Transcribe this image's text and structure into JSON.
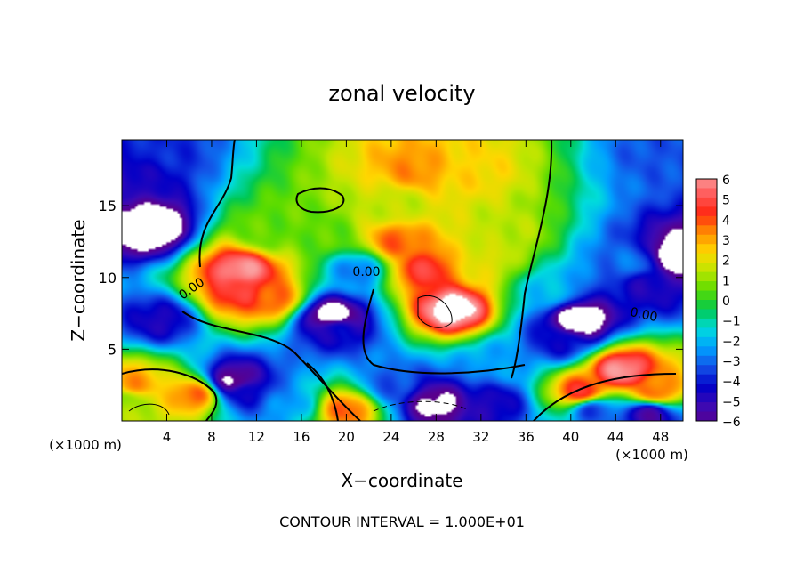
{
  "chart_data": {
    "type": "heatmap",
    "title": "zonal velocity",
    "xlabel": "X−coordinate",
    "ylabel": "Z−coordinate",
    "x_unit_label": "(×1000 m)",
    "y_unit_label": "(×1000 m)",
    "footer": "CONTOUR INTERVAL = 1.000E+01",
    "contour_labels": [
      "0.00",
      "0.00",
      "0.00"
    ],
    "x_ticks": [
      4,
      8,
      12,
      16,
      20,
      24,
      28,
      32,
      36,
      40,
      44,
      48
    ],
    "y_ticks": [
      5,
      10,
      15
    ],
    "xlim": [
      0,
      50
    ],
    "ylim": [
      0,
      19.6
    ],
    "colorbar": {
      "ticks": [
        6,
        5,
        4,
        3,
        2,
        1,
        0,
        -1,
        -2,
        -3,
        -4,
        -5,
        -6
      ],
      "tick_labels": [
        "6",
        "5",
        "4",
        "3",
        "2",
        "1",
        "0",
        "−1",
        "−2",
        "−3",
        "−4",
        "−5",
        "−6"
      ],
      "range": [
        -6,
        6
      ]
    },
    "features": [
      {
        "x": 2.5,
        "z": 13.5,
        "value": -8
      },
      {
        "x": 0.5,
        "z": 17,
        "value": -5
      },
      {
        "x": 3.5,
        "z": 7,
        "value": -5
      },
      {
        "x": 0.5,
        "z": 1.5,
        "value": 1
      },
      {
        "x": 1,
        "z": 2.5,
        "value": 3.5
      },
      {
        "x": 6.5,
        "z": 1.8,
        "value": 4
      },
      {
        "x": 10.8,
        "z": 10.5,
        "value": 6.5
      },
      {
        "x": 10.5,
        "z": 9,
        "value": 5
      },
      {
        "x": 13.5,
        "z": 8.5,
        "value": 4
      },
      {
        "x": 10,
        "z": 2.8,
        "value": -7
      },
      {
        "x": 11,
        "z": 2,
        "value": -4.5
      },
      {
        "x": 18.7,
        "z": 7.3,
        "value": -8
      },
      {
        "x": 19,
        "z": 6.5,
        "value": -4.5
      },
      {
        "x": 21,
        "z": 10.5,
        "value": -3
      },
      {
        "x": 29.5,
        "z": 7.8,
        "value": 7.5
      },
      {
        "x": 27,
        "z": 10.5,
        "value": 5
      },
      {
        "x": 24.5,
        "z": 12.5,
        "value": 4
      },
      {
        "x": 26,
        "z": 17.5,
        "value": 3.5
      },
      {
        "x": 31,
        "z": 17.5,
        "value": 2.5
      },
      {
        "x": 32,
        "z": 11,
        "value": 2
      },
      {
        "x": 34,
        "z": 13,
        "value": 1.5
      },
      {
        "x": 24.5,
        "z": 15,
        "value": 1.5
      },
      {
        "x": 18,
        "z": 13,
        "value": 0.5
      },
      {
        "x": 28,
        "z": 1.2,
        "value": -7
      },
      {
        "x": 24,
        "z": 2.5,
        "value": -3.5
      },
      {
        "x": 33,
        "z": 4,
        "value": -2.5
      },
      {
        "x": 20,
        "z": 0.8,
        "value": 4
      },
      {
        "x": 33,
        "z": 1.2,
        "value": -5
      },
      {
        "x": 48,
        "z": 18.5,
        "value": -3.5
      },
      {
        "x": 49.5,
        "z": 11.5,
        "value": -8
      },
      {
        "x": 47,
        "z": 9.5,
        "value": -5
      },
      {
        "x": 40.7,
        "z": 7,
        "value": -8
      },
      {
        "x": 39,
        "z": 5.5,
        "value": -4.5
      },
      {
        "x": 44.5,
        "z": 3.5,
        "value": 6.5
      },
      {
        "x": 41,
        "z": 2,
        "value": 5
      },
      {
        "x": 47.5,
        "z": 2,
        "value": 4
      },
      {
        "x": 42,
        "z": 0.8,
        "value": -4
      },
      {
        "x": 47,
        "z": 0.5,
        "value": -6
      },
      {
        "x": 45.5,
        "z": 11,
        "value": -3
      },
      {
        "x": 3,
        "z": 19,
        "value": -4
      },
      {
        "x": 13,
        "z": 13,
        "value": 0.5
      },
      {
        "x": 15,
        "z": 1.2,
        "value": -2.5
      },
      {
        "x": 38,
        "z": 9,
        "value": -2
      }
    ]
  }
}
